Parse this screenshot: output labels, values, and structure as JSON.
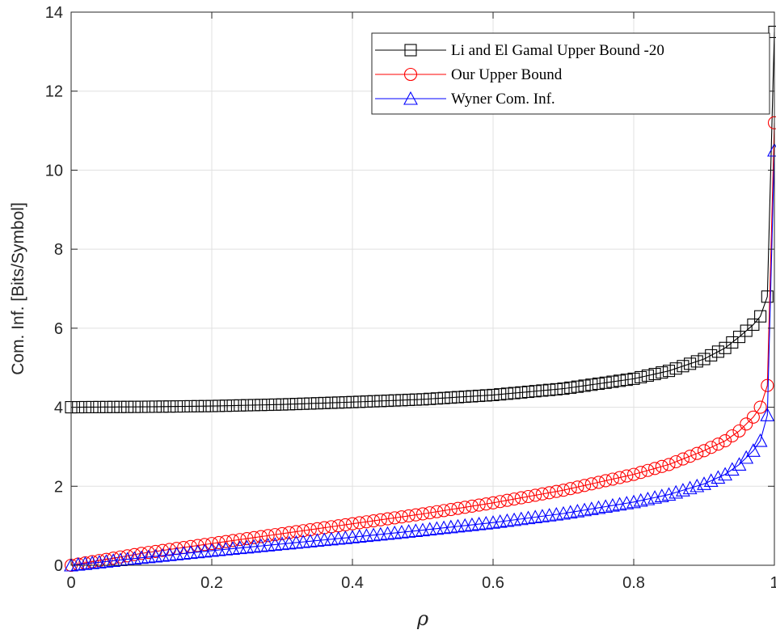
{
  "chart_data": {
    "type": "line",
    "xlabel": "ρ",
    "ylabel": "Com. Inf. [Bits/Symbol]",
    "xlim": [
      0,
      1
    ],
    "ylim": [
      0,
      14
    ],
    "xticks": [
      "0",
      "0.2",
      "0.4",
      "0.6",
      "0.8",
      "1"
    ],
    "yticks": [
      "0",
      "2",
      "4",
      "6",
      "8",
      "10",
      "12",
      "14"
    ],
    "grid": true,
    "legend_position": "top-right",
    "colors": {
      "black": "#000000",
      "red": "#ff0000",
      "blue": "#0000ff",
      "grid": "#e0e0e0",
      "axis": "#262626"
    },
    "series": [
      {
        "name": "Li and El Gamal Upper Bound -20",
        "color": "#000000",
        "marker": "square",
        "x": [
          0,
          0.1,
          0.2,
          0.3,
          0.4,
          0.5,
          0.6,
          0.7,
          0.8,
          0.85,
          0.9,
          0.93,
          0.95,
          0.97,
          0.98,
          0.99,
          1.0
        ],
        "y": [
          4.0,
          4.01,
          4.03,
          4.07,
          4.13,
          4.2,
          4.31,
          4.47,
          4.72,
          4.92,
          5.22,
          5.5,
          5.78,
          6.09,
          6.3,
          6.8,
          13.5
        ]
      },
      {
        "name": "Our Upper Bound",
        "color": "#ff0000",
        "marker": "circle",
        "x": [
          0,
          0.1,
          0.2,
          0.3,
          0.4,
          0.5,
          0.6,
          0.7,
          0.8,
          0.85,
          0.9,
          0.93,
          0.95,
          0.97,
          0.98,
          0.99,
          1.0
        ],
        "y": [
          0.0,
          0.3,
          0.55,
          0.8,
          1.05,
          1.3,
          1.58,
          1.9,
          2.3,
          2.55,
          2.9,
          3.15,
          3.4,
          3.75,
          4.0,
          4.55,
          11.2
        ]
      },
      {
        "name": "Wyner Com. Inf.",
        "color": "#0000ff",
        "marker": "triangle",
        "x": [
          0,
          0.1,
          0.2,
          0.3,
          0.4,
          0.5,
          0.6,
          0.7,
          0.8,
          0.85,
          0.9,
          0.93,
          0.95,
          0.97,
          0.98,
          0.99,
          1.0
        ],
        "y": [
          0.0,
          0.19,
          0.37,
          0.54,
          0.71,
          0.89,
          1.08,
          1.31,
          1.6,
          1.79,
          2.06,
          2.3,
          2.55,
          2.9,
          3.15,
          3.8,
          10.5
        ]
      }
    ]
  }
}
